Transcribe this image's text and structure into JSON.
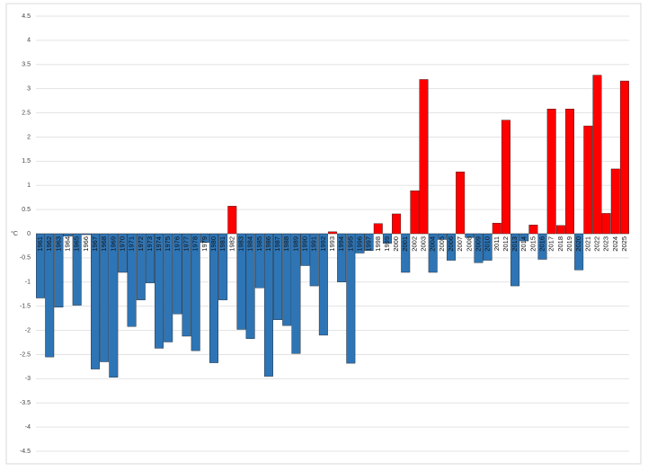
{
  "chart_data": {
    "type": "bar",
    "y_label": "°C",
    "categories": [
      "1961",
      "1962",
      "1963",
      "1964",
      "1965",
      "1966",
      "1967",
      "1968",
      "1969",
      "1970",
      "1971",
      "1972",
      "1973",
      "1974",
      "1975",
      "1976",
      "1977",
      "1978",
      "1979",
      "1980",
      "1981",
      "1982",
      "1983",
      "1984",
      "1985",
      "1986",
      "1987",
      "1988",
      "1989",
      "1990",
      "1991",
      "1992",
      "1993",
      "1994",
      "1995",
      "1996",
      "1997",
      "1998",
      "1999",
      "2000",
      "2001",
      "2002",
      "2003",
      "2004",
      "2005",
      "2006",
      "2007",
      "2008",
      "2009",
      "2010",
      "2011",
      "2012",
      "2013",
      "2014",
      "2015",
      "2016",
      "2017",
      "2018",
      "2019",
      "2020",
      "2021",
      "2022",
      "2023",
      "2024",
      "2025"
    ],
    "values": [
      -1.33,
      -2.55,
      -1.52,
      -0.05,
      -1.48,
      -0.02,
      -2.8,
      -2.65,
      -2.97,
      -0.8,
      -1.92,
      -1.37,
      -1.02,
      -2.37,
      -2.24,
      -1.66,
      -2.12,
      -2.42,
      -0.18,
      -2.67,
      -1.37,
      0.57,
      -1.98,
      -2.17,
      -1.12,
      -2.95,
      -1.78,
      -1.9,
      -2.48,
      -0.66,
      -1.08,
      -2.1,
      0.04,
      -1.0,
      -2.68,
      -0.4,
      -0.35,
      0.21,
      -0.2,
      0.41,
      -0.8,
      0.89,
      3.19,
      -0.8,
      -0.12,
      -0.55,
      1.28,
      -0.08,
      -0.6,
      -0.55,
      0.22,
      2.35,
      -1.08,
      -0.15,
      0.18,
      -0.53,
      2.58,
      0.17,
      2.58,
      -0.75,
      2.23,
      3.28,
      0.42,
      1.34,
      3.16
    ],
    "positive_color": "#ff0000",
    "negative_color": "#2e75b6",
    "ylim": [
      -4.5,
      4.5
    ],
    "yticks": [
      -4.5,
      -4,
      -3.5,
      -3,
      -2.5,
      -2,
      -1.5,
      -1,
      -0.5,
      0,
      0.5,
      1,
      1.5,
      2,
      2.5,
      3,
      3.5,
      4,
      4.5
    ],
    "grid": true
  }
}
